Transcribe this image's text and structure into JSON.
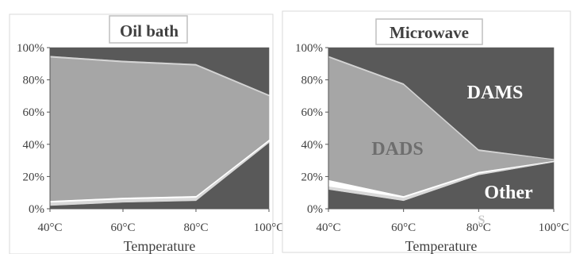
{
  "chart_data": [
    {
      "type": "area",
      "stacked": true,
      "title": "Oil bath",
      "xlabel": "Temperature",
      "ylabel": "",
      "categories": [
        "40°C",
        "60°C",
        "80°C",
        "100°C"
      ],
      "ylim": [
        0,
        100
      ],
      "yticks": [
        "0%",
        "20%",
        "40%",
        "60%",
        "80%",
        "100%"
      ],
      "series": [
        {
          "values": [
            2,
            4,
            5,
            41
          ],
          "color": "#595959"
        },
        {
          "values": [
            2,
            2,
            2,
            1
          ],
          "color": "#d9d9d9"
        },
        {
          "values": [
            1,
            1,
            1,
            1
          ],
          "color": "#ffffff"
        },
        {
          "values": [
            89,
            84,
            81,
            27
          ],
          "color": "#a6a6a6"
        },
        {
          "values": [
            1,
            1,
            1,
            1
          ],
          "color": "#d4d4d4"
        },
        {
          "values": [
            5,
            8,
            10,
            29
          ],
          "color": "#595959"
        }
      ],
      "annotations": [],
      "legend": "none",
      "grid": false
    },
    {
      "type": "area",
      "stacked": true,
      "title": "Microwave",
      "xlabel": "Temperature",
      "ylabel": "",
      "categories": [
        "40°C",
        "60°C",
        "80°C",
        "100°C"
      ],
      "ylim": [
        0,
        100
      ],
      "yticks": [
        "0%",
        "20%",
        "40%",
        "60%",
        "80%",
        "100%"
      ],
      "series": [
        {
          "values": [
            12,
            5,
            21,
            29
          ],
          "color": "#595959"
        },
        {
          "values": [
            2,
            2,
            1,
            0.5
          ],
          "color": "#d9d9d9"
        },
        {
          "values": [
            4,
            1,
            1,
            0.3
          ],
          "color": "#ffffff"
        },
        {
          "values": [
            76,
            69,
            13,
            0.7
          ],
          "color": "#a6a6a6"
        },
        {
          "values": [
            1,
            1,
            1,
            0.5
          ],
          "color": "#d4d4d4"
        },
        {
          "values": [
            5,
            22,
            63,
            69
          ],
          "color": "#595959"
        }
      ],
      "annotations": [
        {
          "text": "DAMS",
          "x": "80°C",
          "y": 75,
          "color": "#ffffff"
        },
        {
          "text": "DADS",
          "x": "60°C",
          "y": 38,
          "color": "#6e6e6e"
        },
        {
          "text": "Other",
          "x": "80°C",
          "y": 10,
          "color": "#ffffff"
        },
        {
          "text": "S",
          "x": "80°C",
          "y": -5,
          "color": "#c8c8c8"
        }
      ],
      "legend": "none",
      "grid": false
    }
  ]
}
